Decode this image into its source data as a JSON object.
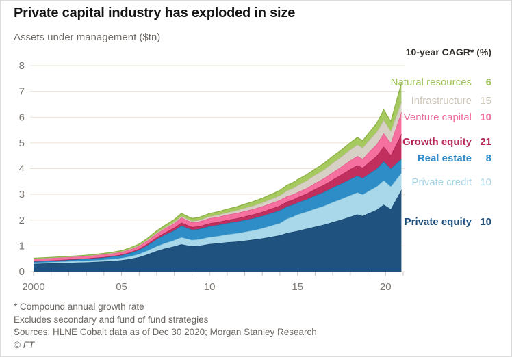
{
  "title": "Private capital industry has exploded in size",
  "subtitle": "Assets under management ($tn)",
  "legend": {
    "heading": "10-year CAGR* (%)",
    "items": [
      {
        "label": "Natural resources",
        "value": "6",
        "color": "#a0c45c",
        "label_bold": false,
        "value_bold": true
      },
      {
        "label": "Infrastructure",
        "value": "15",
        "color": "#ccc4b7",
        "label_bold": false,
        "value_bold": false
      },
      {
        "label": "Venture capital",
        "value": "10",
        "color": "#f06d9d",
        "label_bold": false,
        "value_bold": true
      },
      {
        "label": "Growth equity",
        "value": "21",
        "color": "#b5295a",
        "label_bold": true,
        "value_bold": true
      },
      {
        "label": "Real estate",
        "value": "8",
        "color": "#2d8ac5",
        "label_bold": true,
        "value_bold": true
      },
      {
        "label": "Private credit",
        "value": "10",
        "color": "#a5d3e6",
        "label_bold": false,
        "value_bold": false
      },
      {
        "label": "Private equity",
        "value": "10",
        "color": "#1c4e7c",
        "label_bold": true,
        "value_bold": true
      }
    ]
  },
  "footnotes": {
    "line1": "* Compound annual growth rate",
    "line2": "Excludes secondary and fund of fund strategies",
    "line3": "Sources: HLNE Cobalt data as of Dec 30 2020; Morgan Stanley Research",
    "copyright": "© ",
    "brand": "FT"
  },
  "chart_data": {
    "type": "area",
    "stacked": true,
    "title": "Private capital industry has exploded in size",
    "ylabel": "Assets under management ($tn)",
    "xlabel": "",
    "ylim": [
      0,
      8
    ],
    "grid": true,
    "legend_position": "right",
    "y_ticks": [
      0,
      1,
      2,
      3,
      4,
      5,
      6,
      7,
      8
    ],
    "x_ticks": [
      {
        "label": "2000",
        "year": 2000
      },
      {
        "label": "05",
        "year": 2005
      },
      {
        "label": "10",
        "year": 2010
      },
      {
        "label": "15",
        "year": 2015
      },
      {
        "label": "20",
        "year": 2020
      }
    ],
    "x_minor_tick_years": [
      2000,
      2001,
      2002,
      2003,
      2004,
      2005,
      2006,
      2007,
      2008,
      2009,
      2010,
      2011,
      2012,
      2013,
      2014,
      2015,
      2016,
      2017,
      2018,
      2019,
      2020,
      2021
    ],
    "x": [
      2000,
      2000.5,
      2001,
      2001.5,
      2002,
      2002.5,
      2003,
      2003.5,
      2004,
      2004.5,
      2005,
      2005.5,
      2006,
      2006.5,
      2007,
      2007.5,
      2008,
      2008.4,
      2009,
      2009.4,
      2010,
      2010.5,
      2011,
      2011.5,
      2012,
      2012.5,
      2013,
      2013.5,
      2014,
      2014.4,
      2014.7,
      2015,
      2015.5,
      2016,
      2016.5,
      2017,
      2017.5,
      2018,
      2018.4,
      2018.7,
      2019,
      2019.5,
      2019.9,
      2020.3,
      2020.9
    ],
    "series": [
      {
        "name": "Private equity",
        "cagr_pct": 10,
        "color": "#1f527e",
        "stroke": "#16436b",
        "values": [
          0.3,
          0.31,
          0.32,
          0.33,
          0.34,
          0.35,
          0.36,
          0.375,
          0.39,
          0.41,
          0.44,
          0.49,
          0.56,
          0.67,
          0.8,
          0.9,
          0.98,
          1.06,
          0.98,
          1.0,
          1.07,
          1.1,
          1.14,
          1.16,
          1.2,
          1.24,
          1.29,
          1.35,
          1.41,
          1.5,
          1.54,
          1.58,
          1.66,
          1.74,
          1.82,
          1.92,
          2.02,
          2.13,
          2.22,
          2.16,
          2.25,
          2.4,
          2.6,
          2.42,
          3.17
        ]
      },
      {
        "name": "Private credit",
        "cagr_pct": 10,
        "color": "#a8d8ea",
        "stroke": "#8ac6dd",
        "values": [
          0.045,
          0.047,
          0.05,
          0.052,
          0.055,
          0.057,
          0.06,
          0.065,
          0.07,
          0.077,
          0.085,
          0.1,
          0.12,
          0.15,
          0.18,
          0.21,
          0.24,
          0.27,
          0.245,
          0.25,
          0.27,
          0.28,
          0.3,
          0.32,
          0.34,
          0.36,
          0.39,
          0.43,
          0.47,
          0.55,
          0.58,
          0.63,
          0.66,
          0.7,
          0.73,
          0.77,
          0.8,
          0.83,
          0.85,
          0.83,
          0.86,
          0.9,
          0.94,
          0.88,
          0.66
        ]
      },
      {
        "name": "Real estate",
        "cagr_pct": 8,
        "color": "#2e8cc7",
        "stroke": "#2376ab",
        "values": [
          0.045,
          0.047,
          0.05,
          0.055,
          0.06,
          0.065,
          0.07,
          0.077,
          0.085,
          0.095,
          0.105,
          0.13,
          0.16,
          0.21,
          0.28,
          0.33,
          0.38,
          0.45,
          0.4,
          0.4,
          0.42,
          0.43,
          0.44,
          0.45,
          0.46,
          0.47,
          0.48,
          0.49,
          0.5,
          0.48,
          0.47,
          0.47,
          0.48,
          0.51,
          0.54,
          0.57,
          0.6,
          0.63,
          0.65,
          0.64,
          0.66,
          0.7,
          0.74,
          0.7,
          0.55
        ]
      },
      {
        "name": "Growth equity",
        "cagr_pct": 21,
        "color": "#c12f5e",
        "stroke": "#a5234d",
        "values": [
          0.01,
          0.011,
          0.012,
          0.013,
          0.015,
          0.016,
          0.018,
          0.02,
          0.022,
          0.024,
          0.027,
          0.033,
          0.04,
          0.055,
          0.07,
          0.085,
          0.1,
          0.12,
          0.105,
          0.105,
          0.115,
          0.12,
          0.125,
          0.13,
          0.14,
          0.15,
          0.16,
          0.17,
          0.18,
          0.185,
          0.188,
          0.2,
          0.22,
          0.25,
          0.28,
          0.31,
          0.35,
          0.39,
          0.41,
          0.4,
          0.44,
          0.5,
          0.57,
          0.52,
          0.96
        ]
      },
      {
        "name": "Venture capital",
        "cagr_pct": 10,
        "color": "#f5709f",
        "stroke": "#e2588b",
        "values": [
          0.1,
          0.102,
          0.1,
          0.098,
          0.095,
          0.095,
          0.095,
          0.097,
          0.1,
          0.1,
          0.1,
          0.105,
          0.11,
          0.125,
          0.14,
          0.155,
          0.175,
          0.2,
          0.18,
          0.185,
          0.195,
          0.195,
          0.2,
          0.205,
          0.21,
          0.21,
          0.215,
          0.215,
          0.215,
          0.21,
          0.205,
          0.2,
          0.21,
          0.23,
          0.25,
          0.28,
          0.31,
          0.34,
          0.36,
          0.35,
          0.39,
          0.45,
          0.52,
          0.47,
          0.85
        ]
      },
      {
        "name": "Infrastructure",
        "cagr_pct": 15,
        "color": "#d7d0c4",
        "stroke": "#c3b9a8",
        "values": [
          0.005,
          0.006,
          0.006,
          0.007,
          0.008,
          0.009,
          0.01,
          0.011,
          0.013,
          0.015,
          0.018,
          0.021,
          0.025,
          0.03,
          0.035,
          0.04,
          0.045,
          0.05,
          0.05,
          0.055,
          0.07,
          0.08,
          0.09,
          0.1,
          0.115,
          0.13,
          0.145,
          0.16,
          0.18,
          0.22,
          0.24,
          0.27,
          0.3,
          0.32,
          0.34,
          0.37,
          0.39,
          0.42,
          0.44,
          0.43,
          0.45,
          0.48,
          0.51,
          0.47,
          0.4
        ]
      },
      {
        "name": "Natural resources",
        "cagr_pct": 6,
        "color": "#a6c960",
        "stroke": "#8eb347",
        "values": [
          0.01,
          0.011,
          0.012,
          0.013,
          0.015,
          0.017,
          0.02,
          0.022,
          0.025,
          0.03,
          0.035,
          0.042,
          0.05,
          0.06,
          0.075,
          0.087,
          0.1,
          0.11,
          0.1,
          0.105,
          0.115,
          0.12,
          0.13,
          0.14,
          0.15,
          0.16,
          0.17,
          0.18,
          0.195,
          0.21,
          0.215,
          0.22,
          0.225,
          0.235,
          0.245,
          0.255,
          0.26,
          0.27,
          0.28,
          0.275,
          0.29,
          0.33,
          0.4,
          0.36,
          0.72
        ]
      }
    ]
  }
}
